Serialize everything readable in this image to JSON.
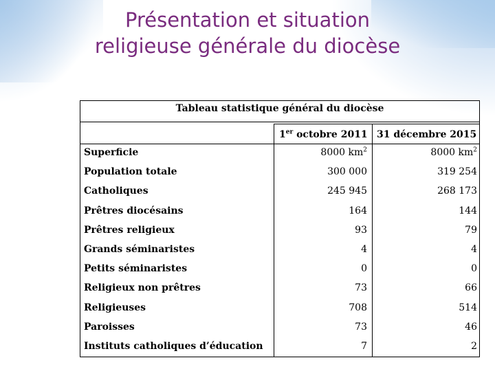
{
  "slide": {
    "title_line1": "Présentation et situation",
    "title_line2": "religieuse générale du diocèse"
  },
  "table": {
    "caption": "Tableau statistique général du diocèse",
    "col1_header_day": "1",
    "col1_header_sup": "er",
    "col1_header_rest": " octobre 2011",
    "col2_header": "31 décembre 2015",
    "rows": [
      {
        "label": "Superficie",
        "v1": "8000 km",
        "v1_sup": "2",
        "v2": "8000 km",
        "v2_sup": "2"
      },
      {
        "label": "Population totale",
        "v1": "300 000",
        "v2": "319 254"
      },
      {
        "label": "Catholiques",
        "v1": "245 945",
        "v2": "268 173"
      },
      {
        "label": "Prêtres diocésains",
        "v1": "164",
        "v2": "144"
      },
      {
        "label": "Prêtres religieux",
        "v1": "93",
        "v2": "79"
      },
      {
        "label": "Grands séminaristes",
        "v1": "4",
        "v2": "4"
      },
      {
        "label": "Petits séminaristes",
        "v1": "0",
        "v2": "0"
      },
      {
        "label": "Religieux non prêtres",
        "v1": "73",
        "v2": "66"
      },
      {
        "label": "Religieuses",
        "v1": "708",
        "v2": "514"
      },
      {
        "label": "Paroisses",
        "v1": "73",
        "v2": "46"
      },
      {
        "label": "Instituts catholiques d’éducation",
        "v1": "7",
        "v2": "2"
      }
    ]
  }
}
